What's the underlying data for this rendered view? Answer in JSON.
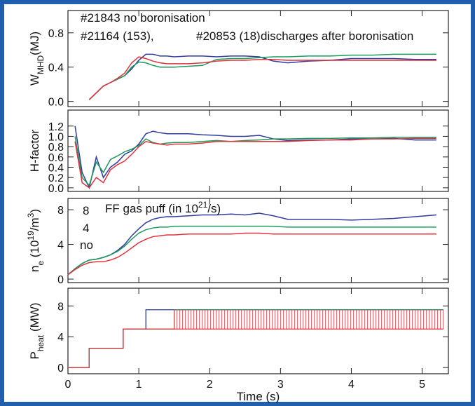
{
  "chart_data": [
    {
      "type": "line",
      "annotation": "discharges after boronisation",
      "ylabel": [
        {
          "text": "W"
        },
        {
          "text": "MHD",
          "shift": "sub"
        },
        {
          "text": "(MJ)"
        }
      ],
      "x": [
        0,
        0.1,
        0.2,
        0.3,
        0.4,
        0.5,
        0.6,
        0.7,
        0.8,
        0.9,
        1.0,
        1.1,
        1.2,
        1.3,
        1.4,
        1.5,
        1.7,
        1.9,
        2.1,
        2.3,
        2.5,
        2.7,
        2.9,
        3.1,
        3.4,
        3.7,
        4.0,
        4.3,
        4.6,
        4.9,
        5.2
      ],
      "xlim": [
        0,
        5.37
      ],
      "xticks": [
        0,
        1,
        2,
        3,
        4,
        5
      ],
      "ylim": [
        -0.06,
        1.06
      ],
      "yticks": [
        {
          "value": 0,
          "label": "0.0"
        },
        0.4,
        0.8
      ],
      "series": [
        {
          "name": "#21843 no boronisation",
          "color": "#2e3c9c",
          "values": [
            null,
            null,
            null,
            0.02,
            0.1,
            0.18,
            0.22,
            0.26,
            0.3,
            0.38,
            0.48,
            0.55,
            0.55,
            0.53,
            0.53,
            0.52,
            0.53,
            0.53,
            0.52,
            0.53,
            0.53,
            0.52,
            0.47,
            0.45,
            0.47,
            0.48,
            0.5,
            0.5,
            0.5,
            0.49,
            0.49
          ]
        },
        {
          "name": "#21164 (153),",
          "color": "#1b9a5c",
          "values": [
            null,
            null,
            null,
            0.02,
            0.1,
            0.18,
            0.22,
            0.26,
            0.3,
            0.4,
            0.46,
            0.45,
            0.42,
            0.4,
            0.4,
            0.4,
            0.41,
            0.42,
            0.49,
            0.5,
            0.5,
            0.51,
            0.52,
            0.52,
            0.53,
            0.53,
            0.54,
            0.54,
            0.55,
            0.55,
            0.55
          ]
        },
        {
          "name": "#20853 (18)",
          "color": "#e2323c",
          "values": [
            null,
            null,
            null,
            0.02,
            0.1,
            0.18,
            0.22,
            0.27,
            0.33,
            0.45,
            0.52,
            0.5,
            0.47,
            0.45,
            0.44,
            0.44,
            0.44,
            0.45,
            0.47,
            0.48,
            0.48,
            0.49,
            0.49,
            0.48,
            0.48,
            0.48,
            0.48,
            0.48,
            0.48,
            0.48,
            0.48
          ]
        }
      ]
    },
    {
      "type": "line",
      "ylabel": [
        {
          "text": "H-factor"
        }
      ],
      "x": [
        0,
        0.1,
        0.2,
        0.3,
        0.4,
        0.5,
        0.6,
        0.7,
        0.8,
        0.9,
        1.0,
        1.1,
        1.2,
        1.3,
        1.4,
        1.5,
        1.7,
        1.9,
        2.1,
        2.3,
        2.5,
        2.7,
        2.9,
        3.1,
        3.4,
        3.7,
        4.0,
        4.3,
        4.6,
        4.9,
        5.2
      ],
      "xlim": [
        0,
        5.37
      ],
      "xticks": [
        0,
        1,
        2,
        3,
        4,
        5
      ],
      "ylim": [
        -0.07,
        1.51
      ],
      "yticks": [
        {
          "value": 0,
          "label": "0.0"
        },
        0.2,
        0.4,
        0.6,
        0.8,
        {
          "value": 1,
          "label": "1.0"
        },
        1.2
      ],
      "series": [
        {
          "color": "#2e3c9c",
          "values": [
            null,
            1.2,
            0.3,
            0,
            0.6,
            0.2,
            0.4,
            0.5,
            0.65,
            0.72,
            0.85,
            1.05,
            1.1,
            1.07,
            1.05,
            1.05,
            1.05,
            1.03,
            1.02,
            1.0,
            1.0,
            1.02,
            0.95,
            0.92,
            0.93,
            0.93,
            0.95,
            0.95,
            0.96,
            0.93,
            0.93
          ]
        },
        {
          "color": "#1b9a5c",
          "values": [
            null,
            1.0,
            0.2,
            0.05,
            0.5,
            0.3,
            0.55,
            0.62,
            0.7,
            0.75,
            0.82,
            0.95,
            0.88,
            0.85,
            0.87,
            0.88,
            0.88,
            0.9,
            0.92,
            0.9,
            0.92,
            0.93,
            0.95,
            0.95,
            0.96,
            0.96,
            0.97,
            0.97,
            0.98,
            0.98,
            0.98
          ]
        },
        {
          "color": "#e2323c",
          "values": [
            null,
            0.9,
            0.1,
            0.0,
            0.2,
            0.1,
            0.35,
            0.45,
            0.52,
            0.65,
            0.8,
            0.9,
            0.87,
            0.85,
            0.83,
            0.85,
            0.85,
            0.87,
            0.9,
            0.9,
            0.9,
            0.9,
            0.9,
            0.9,
            0.92,
            0.93,
            0.93,
            0.95,
            0.95,
            0.96,
            0.96
          ]
        }
      ]
    },
    {
      "type": "line",
      "ylabel": [
        {
          "text": "n"
        },
        {
          "text": "e",
          "shift": "sub"
        },
        {
          "text": " (10"
        },
        {
          "text": "19",
          "shift": "sup"
        },
        {
          "text": "/m"
        },
        {
          "text": "3",
          "shift": "sup"
        },
        {
          "text": ")"
        }
      ],
      "annotation": [
        {
          "text": "FF gas puff (in 10"
        },
        {
          "text": "21",
          "shift": "sup"
        },
        {
          "text": "/s)"
        }
      ],
      "x": [
        0,
        0.1,
        0.2,
        0.3,
        0.4,
        0.5,
        0.6,
        0.7,
        0.8,
        0.9,
        1.0,
        1.1,
        1.2,
        1.3,
        1.4,
        1.5,
        1.7,
        1.9,
        2.1,
        2.3,
        2.5,
        2.7,
        2.9,
        3.1,
        3.4,
        3.7,
        4.0,
        4.3,
        4.6,
        4.9,
        5.2
      ],
      "xlim": [
        0,
        5.37
      ],
      "xticks": [
        0,
        1,
        2,
        3,
        4,
        5
      ],
      "ylim": [
        -0.4,
        9.3
      ],
      "yticks": [
        0,
        4,
        8
      ],
      "series": [
        {
          "name": "8",
          "color": "#2e3c9c",
          "values": [
            0.5,
            1.2,
            1.8,
            2.2,
            2.3,
            2.5,
            2.8,
            3.3,
            4,
            5,
            5.8,
            6.5,
            6.9,
            7.1,
            7.2,
            7.2,
            7.3,
            7.4,
            7.4,
            7.5,
            7.4,
            7.6,
            7.3,
            6.9,
            6.9,
            6.9,
            6.8,
            6.9,
            7.0,
            7.2,
            7.4
          ]
        },
        {
          "name": "4",
          "color": "#1b9a5c",
          "values": [
            0.5,
            1.2,
            1.8,
            2.2,
            2.3,
            2.5,
            2.8,
            3.2,
            3.8,
            4.6,
            5.3,
            5.7,
            5.9,
            6.0,
            6.0,
            6.1,
            6.1,
            6.1,
            6.1,
            6.1,
            6.1,
            6.1,
            6.1,
            6.0,
            6.0,
            6.0,
            6.0,
            6.0,
            6.0,
            6.0,
            6.0
          ]
        },
        {
          "name": "no",
          "color": "#e2323c",
          "values": [
            0.5,
            1.1,
            1.6,
            1.9,
            2.0,
            2.0,
            2.2,
            2.5,
            3.0,
            3.6,
            4.2,
            4.6,
            4.9,
            5.0,
            5.1,
            5.1,
            5.2,
            5.2,
            5.2,
            5.2,
            5.3,
            5.3,
            5.2,
            5.2,
            5.2,
            5.2,
            5.2,
            5.2,
            5.2,
            5.2,
            5.2
          ]
        }
      ]
    },
    {
      "type": "step",
      "ylabel": [
        {
          "text": "P"
        },
        {
          "text": "heat",
          "shift": "sub"
        },
        {
          "text": " (MW)"
        }
      ],
      "xlabel": "Time (s)",
      "xticklabels": true,
      "x": [
        0,
        0.3,
        0.78,
        1.1,
        1.5,
        5.3
      ],
      "xlim": [
        0,
        5.37
      ],
      "xticks": [
        0,
        1,
        2,
        3,
        4,
        5
      ],
      "ylim": [
        -0.8,
        10.3
      ],
      "yticks": [
        0,
        4,
        8
      ],
      "series": [
        {
          "color": "#2e3c9c",
          "values": [
            0,
            2.5,
            5,
            7.5,
            7.5,
            7.5
          ]
        },
        {
          "color": "#1b9a5c",
          "values": [
            0,
            2.5,
            5,
            5,
            7.5,
            7.5
          ]
        },
        {
          "color": "#e2323c",
          "values": [
            0,
            2.5,
            5,
            5,
            5,
            5
          ],
          "modulation_max": [
            null,
            null,
            null,
            null,
            7.5,
            null
          ]
        }
      ]
    }
  ]
}
